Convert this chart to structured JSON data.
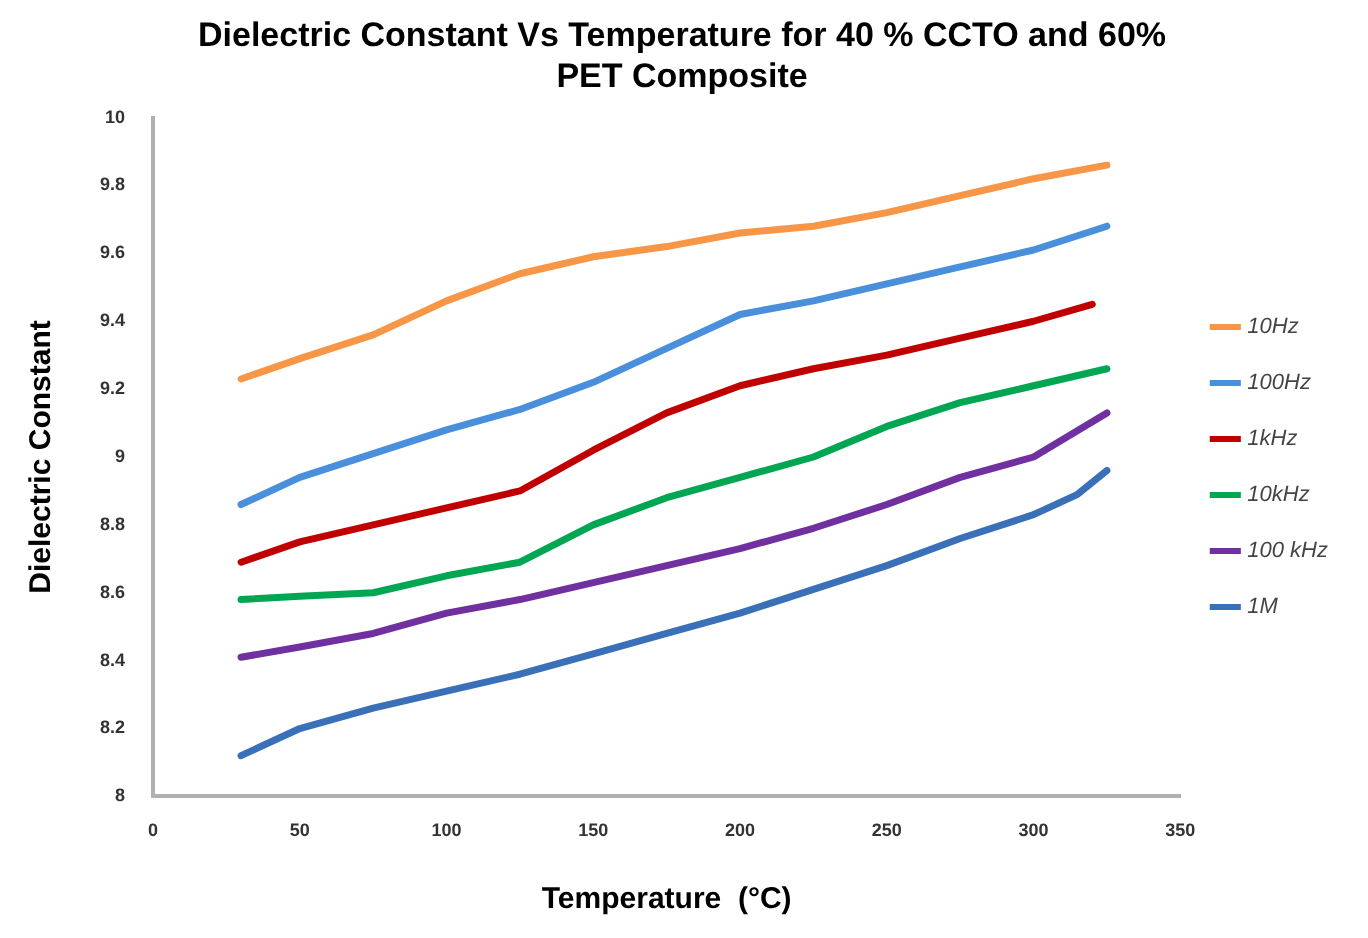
{
  "chart_data": {
    "type": "line",
    "title": "Dielectric Constant Vs Temperature for 40 % CCTO and 60% PET Composite",
    "xlabel": "Temperature  (°C)",
    "ylabel": "Dielectric Constant",
    "xlim": [
      0,
      350
    ],
    "xticks": [
      0,
      50,
      100,
      150,
      200,
      250,
      300,
      350
    ],
    "ylim": [
      8,
      10
    ],
    "yticks": [
      8,
      8.2,
      8.4,
      8.6,
      8.8,
      9,
      9.2,
      9.4,
      9.6,
      9.8,
      10
    ],
    "grid": false,
    "legend": "right",
    "marker": "none",
    "line_style": "solid",
    "series": [
      {
        "name": "10Hz",
        "color": "#f79646",
        "x": [
          30,
          50,
          75,
          100,
          125,
          150,
          175,
          200,
          225,
          250,
          275,
          300,
          325
        ],
        "values": [
          9.23,
          9.29,
          9.36,
          9.46,
          9.54,
          9.59,
          9.62,
          9.66,
          9.68,
          9.72,
          9.77,
          9.82,
          9.86
        ]
      },
      {
        "name": "100Hz",
        "color": "#4a8fdb",
        "x": [
          30,
          50,
          75,
          100,
          125,
          150,
          175,
          200,
          225,
          250,
          275,
          300,
          325
        ],
        "values": [
          8.86,
          8.94,
          9.01,
          9.08,
          9.14,
          9.22,
          9.32,
          9.42,
          9.46,
          9.51,
          9.56,
          9.61,
          9.68
        ]
      },
      {
        "name": "1kHz",
        "color": "#c00000",
        "x": [
          30,
          50,
          75,
          100,
          125,
          150,
          175,
          200,
          225,
          250,
          275,
          300,
          320
        ],
        "values": [
          8.69,
          8.75,
          8.8,
          8.85,
          8.9,
          9.02,
          9.13,
          9.21,
          9.26,
          9.3,
          9.35,
          9.4,
          9.45
        ]
      },
      {
        "name": "10kHz",
        "color": "#00a651",
        "x": [
          30,
          50,
          75,
          100,
          125,
          150,
          175,
          200,
          225,
          250,
          275,
          300,
          325
        ],
        "values": [
          8.58,
          8.59,
          8.6,
          8.65,
          8.69,
          8.8,
          8.88,
          8.94,
          9,
          9.09,
          9.16,
          9.21,
          9.26
        ]
      },
      {
        "name": "100 kHz",
        "color": "#7030a0",
        "x": [
          30,
          50,
          75,
          100,
          125,
          150,
          175,
          200,
          225,
          250,
          275,
          300,
          325
        ],
        "values": [
          8.41,
          8.44,
          8.48,
          8.54,
          8.58,
          8.63,
          8.68,
          8.73,
          8.79,
          8.86,
          8.94,
          9,
          9.13
        ]
      },
      {
        "name": "1M",
        "color": "#3a70b8",
        "x": [
          30,
          50,
          75,
          100,
          125,
          150,
          175,
          200,
          225,
          250,
          275,
          300,
          315,
          325
        ],
        "values": [
          8.12,
          8.2,
          8.26,
          8.31,
          8.36,
          8.42,
          8.48,
          8.54,
          8.61,
          8.68,
          8.76,
          8.83,
          8.89,
          8.96
        ]
      }
    ]
  }
}
